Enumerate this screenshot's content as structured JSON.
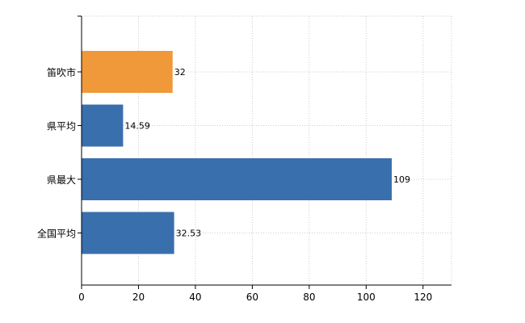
{
  "chart_data": {
    "type": "bar",
    "orientation": "horizontal",
    "categories": [
      "笛吹市",
      "県平均",
      "県最大",
      "全国平均"
    ],
    "values": [
      32,
      14.59,
      109,
      32.53
    ],
    "value_labels": [
      "32",
      "14.59",
      "109",
      "32.53"
    ],
    "bar_colors": [
      "#f0993b",
      "#3a6fad",
      "#3a6fad",
      "#3a6fad"
    ],
    "xlim": [
      0,
      130
    ],
    "x_ticks": [
      0,
      20,
      40,
      60,
      80,
      100,
      120
    ],
    "grid": true,
    "title": "",
    "xlabel": "",
    "ylabel": ""
  }
}
